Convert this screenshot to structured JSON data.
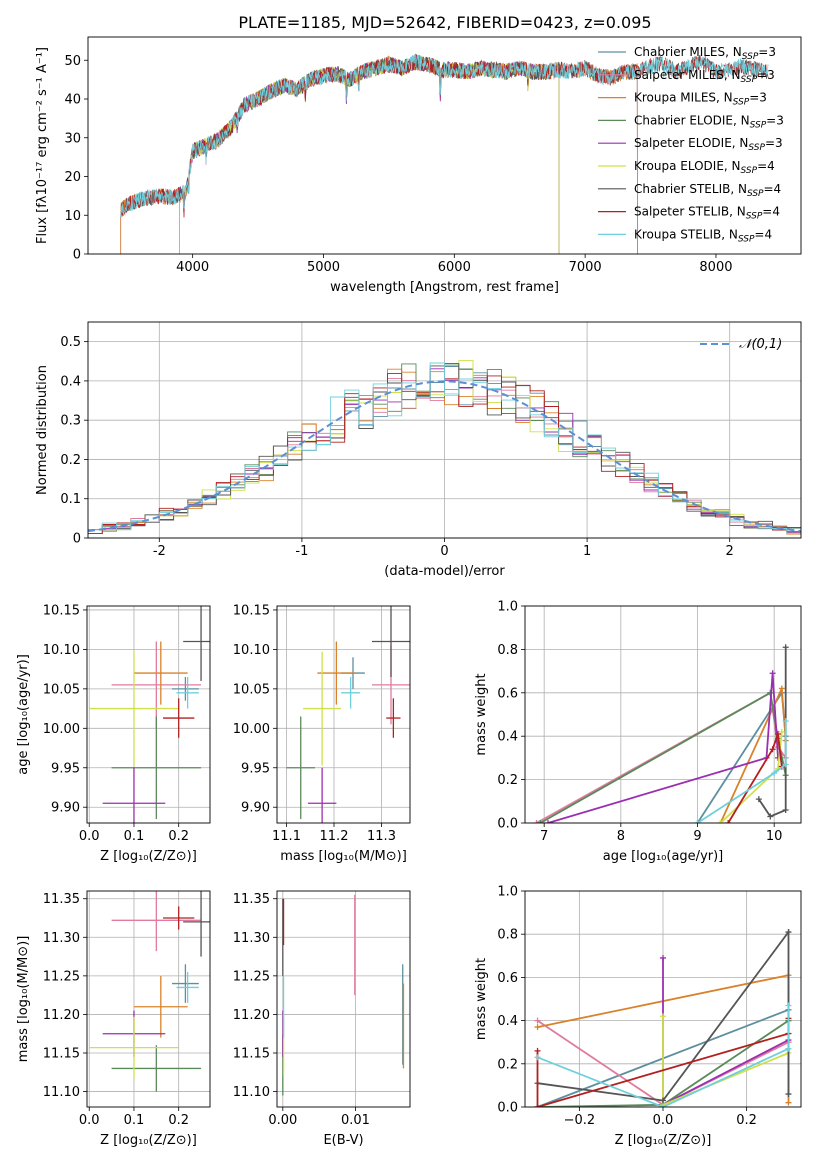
{
  "figure_title": "PLATE=1185, MJD=52642, FIBERID=0423, z=0.095",
  "chart_data": [
    {
      "id": "spectrum",
      "type": "line",
      "xlabel": "wavelength [Angstrom, rest frame]",
      "ylabel": "Flux [fλ10⁻¹⁷ erg cm⁻² s⁻¹ A⁻¹]",
      "xlim": [
        3200,
        8650
      ],
      "ylim": [
        0,
        56
      ],
      "xticks": [
        4000,
        5000,
        6000,
        7000,
        8000
      ],
      "yticks": [
        0,
        10,
        20,
        30,
        40,
        50
      ],
      "grid": false,
      "legend_position": "right",
      "continuum": {
        "x": [
          3450,
          3550,
          3650,
          3750,
          3850,
          3950,
          4000,
          4100,
          4200,
          4300,
          4400,
          4500,
          4600,
          4700,
          4800,
          4900,
          5000,
          5100,
          5200,
          5300,
          5400,
          5500,
          5600,
          5700,
          5800,
          5900,
          6000,
          6100,
          6200,
          6300,
          6400,
          6500,
          6600,
          6700,
          6800,
          6900,
          7000,
          7100,
          7200,
          7300,
          7400,
          7500,
          7600,
          7700,
          7800,
          7900,
          8000,
          8100,
          8200,
          8300,
          8400
        ],
        "y": [
          11.5,
          13.5,
          14.5,
          15,
          14.5,
          16,
          26.5,
          28,
          29.5,
          33,
          38.5,
          40,
          42,
          43.5,
          42.5,
          45,
          46,
          46.5,
          45,
          47,
          48,
          49,
          48,
          49.5,
          49,
          47.5,
          47.5,
          47,
          48,
          47.5,
          47,
          48,
          47,
          47,
          47.5,
          47,
          48,
          46,
          45.5,
          47,
          47,
          48.5,
          49,
          47,
          48.5,
          49.5,
          47,
          47.5,
          48.5,
          47.5,
          47
        ]
      },
      "series": [
        {
          "name": "Chabrier MILES, N_SSP=3",
          "label_main": "Chabrier MILES, N",
          "label_sub": "SSP",
          "label_tail": "=3",
          "color": "#5c8fa0",
          "range": [
            3450,
            7400
          ]
        },
        {
          "name": "Salpeter MILES, N_SSP=3",
          "label_main": "Salpeter MILES, N",
          "label_sub": "SSP",
          "label_tail": "=3",
          "color": "#e07a9e",
          "range": [
            3450,
            7400
          ]
        },
        {
          "name": "Kroupa MILES, N_SSP=3",
          "label_main": "Kroupa MILES, N",
          "label_sub": "SSP",
          "label_tail": "=3",
          "color": "#d9822b",
          "range": [
            3450,
            7400
          ]
        },
        {
          "name": "Chabrier ELODIE, N_SSP=3",
          "label_main": "Chabrier ELODIE, N",
          "label_sub": "SSP",
          "label_tail": "=3",
          "color": "#5a8a5a",
          "range": [
            3900,
            6800
          ]
        },
        {
          "name": "Salpeter ELODIE, N_SSP=3",
          "label_main": "Salpeter ELODIE, N",
          "label_sub": "SSP",
          "label_tail": "=3",
          "color": "#9b2fb0",
          "range": [
            3900,
            6800
          ]
        },
        {
          "name": "Kroupa ELODIE, N_SSP=4",
          "label_main": "Kroupa ELODIE, N",
          "label_sub": "SSP",
          "label_tail": "=4",
          "color": "#cfe04a",
          "range": [
            3900,
            6800
          ]
        },
        {
          "name": "Chabrier STELIB, N_SSP=4",
          "label_main": "Chabrier STELIB, N",
          "label_sub": "SSP",
          "label_tail": "=4",
          "color": "#555555",
          "range": [
            3450,
            8400
          ]
        },
        {
          "name": "Salpeter STELIB, N_SSP=4",
          "label_main": "Salpeter STELIB, N",
          "label_sub": "SSP",
          "label_tail": "=4",
          "color": "#b22020",
          "range": [
            3450,
            8400
          ]
        },
        {
          "name": "Kroupa STELIB, N_SSP=4",
          "label_main": "Kroupa STELIB, N",
          "label_sub": "SSP",
          "label_tail": "=4",
          "color": "#6fd0dd",
          "range": [
            3450,
            8400
          ]
        }
      ]
    },
    {
      "id": "residuals",
      "type": "histogram",
      "xlabel": "(data-model)/error",
      "ylabel": "Normed distribution",
      "xlim": [
        -2.5,
        2.5
      ],
      "ylim": [
        0,
        0.55
      ],
      "xticks": [
        -2,
        -1,
        0,
        1,
        2
      ],
      "yticks": [
        0.0,
        0.1,
        0.2,
        0.3,
        0.4,
        0.5
      ],
      "grid": true,
      "legend_position": "top-right",
      "reference_curve": {
        "name": "N(0,1)",
        "label": "𝒩(0,1)",
        "color": "#5b8fd6",
        "style": "dashed"
      },
      "bin_width": 0.1,
      "bin_start": -2.5,
      "series_colors": [
        "#5c8fa0",
        "#e07a9e",
        "#d9822b",
        "#5a8a5a",
        "#9b2fb0",
        "#cfe04a",
        "#555555",
        "#b22020",
        "#6fd0dd"
      ]
    },
    {
      "id": "age_vs_Z",
      "type": "errorbar",
      "xlabel": "Z [log₁₀(Z/Z⊙)]",
      "ylabel": "age  [log₁₀(age/yr)]",
      "xlim": [
        -0.005,
        0.27
      ],
      "ylim": [
        9.88,
        10.155
      ],
      "xticks": [
        0.0,
        0.1,
        0.2
      ],
      "xticklabels": [
        "0.0",
        "0.1",
        "0.2"
      ],
      "yticks": [
        9.9,
        9.95,
        10.0,
        10.05,
        10.1,
        10.15
      ],
      "yticklabels": [
        "9.90",
        "9.95",
        "10.00",
        "10.05",
        "10.10",
        "10.15"
      ],
      "grid": true,
      "points": [
        {
          "color": "#5c8fa0",
          "x": 0.215,
          "xerr": 0.03,
          "y": 10.05,
          "yerr": 0.015
        },
        {
          "color": "#e07a9e",
          "x": 0.15,
          "xerr": 0.1,
          "y": 10.055,
          "yerr": 0.055
        },
        {
          "color": "#d9822b",
          "x": 0.16,
          "xerr": 0.06,
          "y": 10.07,
          "yerr": 0.04
        },
        {
          "color": "#5a8a5a",
          "x": 0.15,
          "xerr": 0.1,
          "y": 9.95,
          "yerr": 0.065
        },
        {
          "color": "#9b2fb0",
          "x": 0.1,
          "xerr": 0.07,
          "y": 9.905,
          "yerr": 0.045
        },
        {
          "color": "#cfe04a",
          "x": 0.1,
          "xerr": 0.1,
          "y": 10.025,
          "yerr": 0.072
        },
        {
          "color": "#555555",
          "x": 0.25,
          "xerr": 0.04,
          "y": 10.11,
          "yerr": 0.05
        },
        {
          "color": "#b22020",
          "x": 0.2,
          "xerr": 0.035,
          "y": 10.013,
          "yerr": 0.025
        },
        {
          "color": "#6fd0dd",
          "x": 0.22,
          "xerr": 0.025,
          "y": 10.045,
          "yerr": 0.02
        }
      ]
    },
    {
      "id": "age_vs_mass",
      "type": "errorbar",
      "xlabel": "mass [log₁₀(M/M⊙)]",
      "ylabel": "",
      "xlim": [
        11.08,
        11.36
      ],
      "ylim": [
        9.88,
        10.155
      ],
      "xticks": [
        11.1,
        11.2,
        11.3
      ],
      "xticklabels": [
        "11.1",
        "11.2",
        "11.3"
      ],
      "yticks": [
        9.9,
        9.95,
        10.0,
        10.05,
        10.1,
        10.15
      ],
      "yticklabels": [
        "9.90",
        "9.95",
        "10.00",
        "10.05",
        "10.10",
        "10.15"
      ],
      "grid": true,
      "points": [
        {
          "color": "#5c8fa0",
          "x": 11.24,
          "xerr": 0.025,
          "y": 10.07,
          "yerr": 0.02
        },
        {
          "color": "#e07a9e",
          "x": 11.32,
          "xerr": 0.04,
          "y": 10.055,
          "yerr": 0.05
        },
        {
          "color": "#d9822b",
          "x": 11.205,
          "xerr": 0.04,
          "y": 10.07,
          "yerr": 0.04
        },
        {
          "color": "#5a8a5a",
          "x": 11.13,
          "xerr": 0.03,
          "y": 9.95,
          "yerr": 0.065
        },
        {
          "color": "#9b2fb0",
          "x": 11.175,
          "xerr": 0.03,
          "y": 9.905,
          "yerr": 0.045
        },
        {
          "color": "#cfe04a",
          "x": 11.175,
          "xerr": 0.04,
          "y": 10.025,
          "yerr": 0.072
        },
        {
          "color": "#555555",
          "x": 11.32,
          "xerr": 0.04,
          "y": 10.11,
          "yerr": 0.045
        },
        {
          "color": "#b22020",
          "x": 11.325,
          "xerr": 0.015,
          "y": 10.013,
          "yerr": 0.025
        },
        {
          "color": "#6fd0dd",
          "x": 11.235,
          "xerr": 0.02,
          "y": 10.045,
          "yerr": 0.02
        }
      ]
    },
    {
      "id": "weight_vs_age",
      "type": "line",
      "xlabel": "age  [log₁₀(age/yr)]",
      "ylabel": "mass weight",
      "xlim": [
        6.75,
        10.35
      ],
      "ylim": [
        0,
        1.0
      ],
      "xticks": [
        7,
        8,
        9,
        10
      ],
      "xticklabels": [
        "7",
        "8",
        "9",
        "10"
      ],
      "yticks": [
        0.0,
        0.2,
        0.4,
        0.6,
        0.8,
        1.0
      ],
      "yticklabels": [
        "0.0",
        "0.2",
        "0.4",
        "0.6",
        "0.8",
        "1.0"
      ],
      "grid": true,
      "series": [
        {
          "color": "#5c8fa0",
          "x": [
            9.0,
            10.1,
            10.15
          ],
          "y": [
            0.0,
            0.6,
            0.4
          ]
        },
        {
          "color": "#e07a9e",
          "x": [
            6.9,
            9.95,
            10.05,
            10.15
          ],
          "y": [
            0.0,
            0.6,
            0.35,
            0.3
          ]
        },
        {
          "color": "#d9822b",
          "x": [
            9.3,
            10.1,
            10.15
          ],
          "y": [
            0.0,
            0.62,
            0.38
          ]
        },
        {
          "color": "#5a8a5a",
          "x": [
            6.95,
            9.95,
            10.05,
            10.15
          ],
          "y": [
            0.0,
            0.6,
            0.39,
            0.22
          ]
        },
        {
          "color": "#9b2fb0",
          "x": [
            7.05,
            9.9,
            9.98,
            10.05
          ],
          "y": [
            0.0,
            0.3,
            0.69,
            0.3
          ]
        },
        {
          "color": "#cfe04a",
          "x": [
            9.3,
            10.05,
            10.1
          ],
          "y": [
            0.0,
            0.25,
            0.42
          ]
        },
        {
          "color": "#555555",
          "x": [
            9.8,
            9.95,
            10.15,
            10.15
          ],
          "y": [
            0.11,
            0.03,
            0.06,
            0.81
          ]
        },
        {
          "color": "#b22020",
          "x": [
            9.4,
            9.98,
            10.05,
            10.1
          ],
          "y": [
            0.0,
            0.34,
            0.41,
            0.26
          ]
        },
        {
          "color": "#6fd0dd",
          "x": [
            9.0,
            10.0,
            10.15,
            10.15
          ],
          "y": [
            0.0,
            0.23,
            0.27,
            0.47
          ]
        }
      ]
    },
    {
      "id": "mass_vs_Z",
      "type": "errorbar",
      "xlabel": "Z [log₁₀(Z/Z⊙)]",
      "ylabel": "mass [log₁₀(M/M⊙)]",
      "xlim": [
        -0.005,
        0.27
      ],
      "ylim": [
        11.08,
        11.36
      ],
      "xticks": [
        0.0,
        0.1,
        0.2
      ],
      "xticklabels": [
        "0.0",
        "0.1",
        "0.2"
      ],
      "yticks": [
        11.1,
        11.15,
        11.2,
        11.25,
        11.3,
        11.35
      ],
      "yticklabels": [
        "11.10",
        "11.15",
        "11.20",
        "11.25",
        "11.30",
        "11.35"
      ],
      "grid": true,
      "points": [
        {
          "color": "#5c8fa0",
          "x": 0.215,
          "xerr": 0.03,
          "y": 11.24,
          "yerr": 0.025
        },
        {
          "color": "#e07a9e",
          "x": 0.15,
          "xerr": 0.1,
          "y": 11.322,
          "yerr": 0.04
        },
        {
          "color": "#d9822b",
          "x": 0.16,
          "xerr": 0.06,
          "y": 11.21,
          "yerr": 0.04
        },
        {
          "color": "#5a8a5a",
          "x": 0.15,
          "xerr": 0.1,
          "y": 11.13,
          "yerr": 0.03
        },
        {
          "color": "#9b2fb0",
          "x": 0.1,
          "xerr": 0.07,
          "y": 11.175,
          "yerr": 0.03
        },
        {
          "color": "#cfe04a",
          "x": 0.1,
          "xerr": 0.1,
          "y": 11.157,
          "yerr": 0.04
        },
        {
          "color": "#555555",
          "x": 0.25,
          "xerr": 0.04,
          "y": 11.32,
          "yerr": 0.045
        },
        {
          "color": "#b22020",
          "x": 0.2,
          "xerr": 0.035,
          "y": 11.325,
          "yerr": 0.015
        },
        {
          "color": "#6fd0dd",
          "x": 0.22,
          "xerr": 0.025,
          "y": 11.235,
          "yerr": 0.02
        }
      ]
    },
    {
      "id": "mass_vs_ebv",
      "type": "errorbar",
      "xlabel": "E(B-V)",
      "ylabel": "",
      "xlim": [
        -0.0008,
        0.0175
      ],
      "ylim": [
        11.08,
        11.36
      ],
      "xticks": [
        0.0,
        0.01
      ],
      "xticklabels": [
        "0.00",
        "0.01"
      ],
      "yticks": [
        11.1,
        11.15,
        11.2,
        11.25,
        11.3,
        11.35
      ],
      "yticklabels": [
        "11.10",
        "11.15",
        "11.20",
        "11.25",
        "11.30",
        "11.35"
      ],
      "grid": true,
      "points": [
        {
          "color": "#5c8fa0",
          "x": 0.0165,
          "xerr": 0,
          "y": 11.2,
          "yerr": 0.065
        },
        {
          "color": "#e07a9e",
          "x": 0.0099,
          "xerr": 0,
          "y": 11.29,
          "yerr": 0.065
        },
        {
          "color": "#d9822b",
          "x": 0.0166,
          "xerr": 0,
          "y": 11.185,
          "yerr": 0.055
        },
        {
          "color": "#5a8a5a",
          "x": 0.0,
          "xerr": 0,
          "y": 11.135,
          "yerr": 0.04
        },
        {
          "color": "#9b2fb0",
          "x": 0.0,
          "xerr": 0,
          "y": 11.175,
          "yerr": 0.03
        },
        {
          "color": "#cfe04a",
          "x": 0.0001,
          "xerr": 0,
          "y": 11.16,
          "yerr": 0.04
        },
        {
          "color": "#555555",
          "x": 0.0,
          "xerr": 0,
          "y": 11.3,
          "yerr": 0.05
        },
        {
          "color": "#b22020",
          "x": 0.0001,
          "xerr": 0,
          "y": 11.32,
          "yerr": 0.03
        },
        {
          "color": "#6fd0dd",
          "x": 0.0001,
          "xerr": 0,
          "y": 11.21,
          "yerr": 0.04
        }
      ]
    },
    {
      "id": "weight_vs_Z",
      "type": "line",
      "xlabel": "Z [log₁₀(Z/Z⊙)]",
      "ylabel": "mass weight",
      "xlim": [
        -0.33,
        0.33
      ],
      "ylim": [
        0,
        1.0
      ],
      "xticks": [
        -0.2,
        0.0,
        0.2
      ],
      "xticklabels": [
        "−0.2",
        "0.0",
        "0.2"
      ],
      "yticks": [
        0.0,
        0.2,
        0.4,
        0.6,
        0.8,
        1.0
      ],
      "yticklabels": [
        "0.0",
        "0.2",
        "0.4",
        "0.6",
        "0.8",
        "1.0"
      ],
      "grid": true,
      "series": [
        {
          "color": "#5c8fa0",
          "x": [
            -0.3,
            0.3,
            0.3
          ],
          "y": [
            0.0,
            0.45,
            0.4
          ]
        },
        {
          "color": "#e07a9e",
          "x": [
            -0.3,
            0.0,
            0.3
          ],
          "y": [
            0.4,
            0.01,
            0.3
          ]
        },
        {
          "color": "#d9822b",
          "x": [
            -0.3,
            0.3,
            0.3
          ],
          "y": [
            0.37,
            0.61,
            0.02
          ]
        },
        {
          "color": "#5a8a5a",
          "x": [
            -0.3,
            0.0,
            0.3
          ],
          "y": [
            0.0,
            0.01,
            0.4
          ]
        },
        {
          "color": "#9b2fb0",
          "x": [
            0.0,
            0.0,
            0.3
          ],
          "y": [
            0.69,
            0.01,
            0.31
          ]
        },
        {
          "color": "#cfe04a",
          "x": [
            0.0,
            0.0,
            0.3
          ],
          "y": [
            0.42,
            0.01,
            0.25
          ]
        },
        {
          "color": "#555555",
          "x": [
            -0.3,
            0.0,
            0.3,
            0.3
          ],
          "y": [
            0.11,
            0.03,
            0.81,
            0.06
          ]
        },
        {
          "color": "#b22020",
          "x": [
            -0.3,
            -0.3,
            0.3,
            0.3
          ],
          "y": [
            0.26,
            0.0,
            0.34,
            0.41
          ]
        },
        {
          "color": "#6fd0dd",
          "x": [
            -0.3,
            0.0,
            0.3,
            0.3
          ],
          "y": [
            0.23,
            0.0,
            0.27,
            0.47
          ]
        }
      ]
    }
  ]
}
